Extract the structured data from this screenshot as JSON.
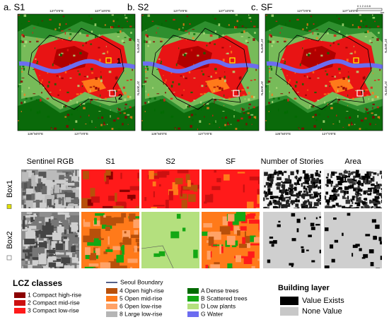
{
  "panels": [
    {
      "title": "a. S1"
    },
    {
      "title": "b. S2"
    },
    {
      "title": "c. SF"
    }
  ],
  "lon_labels": [
    "126°50'0\"E",
    "127°0'0\"E",
    "127°10'0\"E"
  ],
  "lat_labels": [
    "37°40'0\"N",
    "37°30'0\"N"
  ],
  "scale": {
    "ticks": "0 1 2 4 6 8",
    "unit": "km"
  },
  "box_markers": [
    "1",
    "2"
  ],
  "columns": [
    "Sentinel RGB",
    "S1",
    "S2",
    "SF",
    "Number of Stories",
    "Area"
  ],
  "rows": [
    "Box1",
    "Box2"
  ],
  "legend": {
    "title": "LCZ classes",
    "items": [
      {
        "label": "1 Compact high-rise",
        "color": "#8b0000"
      },
      {
        "label": "2 Compact mid-rise",
        "color": "#cc1010"
      },
      {
        "label": "3 Compact low-rise",
        "color": "#ff1a1a"
      },
      {
        "label": "4 Open high-rise",
        "color": "#b8500a"
      },
      {
        "label": "5 Open mid-rise",
        "color": "#ff7a1a"
      },
      {
        "label": "6 Open low-rise",
        "color": "#ffa266"
      },
      {
        "label": "8 Large low-rise",
        "color": "#b5b5b5"
      },
      {
        "label": "A Dense trees",
        "color": "#006a00"
      },
      {
        "label": "B Scattered trees",
        "color": "#14a814"
      },
      {
        "label": "D Low plants",
        "color": "#b4e07e"
      },
      {
        "label": "G Water",
        "color": "#6c6cf0"
      }
    ],
    "boundary": "Seoul Boundary"
  },
  "building_layer": {
    "title": "Building layer",
    "items": [
      {
        "label": "Value Exists",
        "color": "#000000"
      },
      {
        "label": "None Value",
        "color": "#c8c8c8"
      }
    ]
  }
}
